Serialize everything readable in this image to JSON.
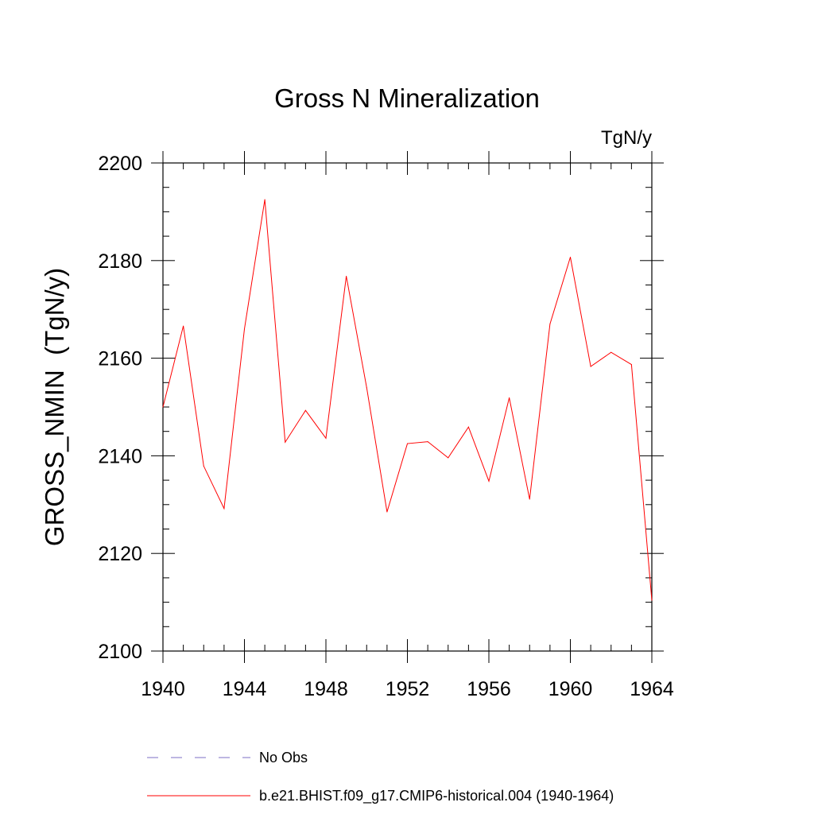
{
  "chart_data": {
    "type": "line",
    "title": "Gross N Mineralization",
    "units_label": "TgN/y",
    "ylabel": "GROSS_NMIN  (TgN/y)",
    "xlabel": "",
    "xlim": [
      1940,
      1964
    ],
    "ylim": [
      2100,
      2200
    ],
    "x_ticks": [
      1940,
      1944,
      1948,
      1952,
      1956,
      1960,
      1964
    ],
    "y_ticks": [
      2100,
      2120,
      2140,
      2160,
      2180,
      2200
    ],
    "grid": false,
    "legend_placement": "bottom",
    "series": [
      {
        "name": "b.e21.BHIST.f09_g17.CMIP6-historical.004 (1940-1964)",
        "color": "#ff0000",
        "style": "solid",
        "x": [
          1940,
          1941,
          1942,
          1943,
          1944,
          1945,
          1946,
          1947,
          1948,
          1949,
          1950,
          1951,
          1952,
          1953,
          1954,
          1955,
          1956,
          1957,
          1958,
          1959,
          1960,
          1961,
          1962,
          1963,
          1964
        ],
        "y": [
          2150.0,
          2166.6,
          2137.9,
          2129.2,
          2166.0,
          2192.5,
          2142.8,
          2149.3,
          2143.6,
          2176.8,
          2154.0,
          2128.5,
          2142.5,
          2142.9,
          2139.6,
          2145.9,
          2134.8,
          2151.9,
          2131.1,
          2167.0,
          2180.7,
          2158.3,
          2161.2,
          2158.7,
          2110.4
        ]
      },
      {
        "name": "No Obs",
        "color": "#7b6fc6",
        "style": "dashed",
        "x": [],
        "y": []
      }
    ]
  }
}
